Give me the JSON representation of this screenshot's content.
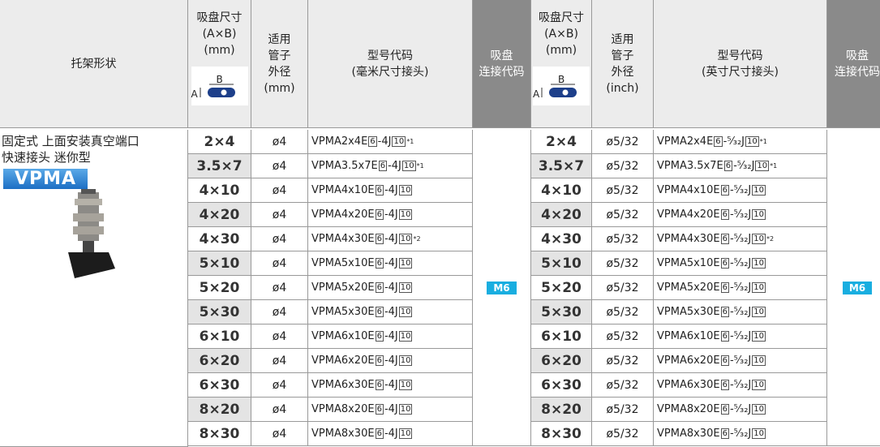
{
  "header": {
    "shape": "托架形状",
    "diagram": {
      "a": "A",
      "b": "B"
    },
    "left": {
      "size": [
        "吸盘尺寸",
        "(A×B)",
        "(mm)"
      ],
      "tube": [
        "适用",
        "管子",
        "外径",
        "(mm)"
      ],
      "model": [
        "型号代码",
        "(毫米尺寸接头)"
      ],
      "conn": [
        "吸盘",
        "连接代码"
      ]
    },
    "right": {
      "size": [
        "吸盘尺寸",
        "(A×B)",
        "(mm)"
      ],
      "tube": [
        "适用",
        "管子",
        "外径",
        "(inch)"
      ],
      "model": [
        "型号代码",
        "(英寸尺寸接头)"
      ],
      "conn": [
        "吸盘",
        "连接代码"
      ]
    }
  },
  "product": {
    "desc": [
      "固定式 上面安装真空端口",
      "快速接头 迷你型"
    ],
    "series": "VPMA"
  },
  "left": {
    "conn": "M6",
    "rows": [
      {
        "size": "2×4",
        "tube": "ø4",
        "model": "VPMA2x4E",
        "code": "6",
        "suffix": "-4J",
        "code2": "10",
        "note": "*1"
      },
      {
        "size": "3.5×7",
        "tube": "ø4",
        "model": "VPMA3.5x7E",
        "code": "6",
        "suffix": "-4J",
        "code2": "10",
        "note": "*1"
      },
      {
        "size": "4×10",
        "tube": "ø4",
        "model": "VPMA4x10E",
        "code": "6",
        "suffix": "-4J",
        "code2": "10"
      },
      {
        "size": "4×20",
        "tube": "ø4",
        "model": "VPMA4x20E",
        "code": "6",
        "suffix": "-4J",
        "code2": "10"
      },
      {
        "size": "4×30",
        "tube": "ø4",
        "model": "VPMA4x30E",
        "code": "6",
        "suffix": "-4J",
        "code2": "10",
        "note": "*2"
      },
      {
        "size": "5×10",
        "tube": "ø4",
        "model": "VPMA5x10E",
        "code": "6",
        "suffix": "-4J",
        "code2": "10"
      },
      {
        "size": "5×20",
        "tube": "ø4",
        "model": "VPMA5x20E",
        "code": "6",
        "suffix": "-4J",
        "code2": "10"
      },
      {
        "size": "5×30",
        "tube": "ø4",
        "model": "VPMA5x30E",
        "code": "6",
        "suffix": "-4J",
        "code2": "10"
      },
      {
        "size": "6×10",
        "tube": "ø4",
        "model": "VPMA6x10E",
        "code": "6",
        "suffix": "-4J",
        "code2": "10"
      },
      {
        "size": "6×20",
        "tube": "ø4",
        "model": "VPMA6x20E",
        "code": "6",
        "suffix": "-4J",
        "code2": "10"
      },
      {
        "size": "6×30",
        "tube": "ø4",
        "model": "VPMA6x30E",
        "code": "6",
        "suffix": "-4J",
        "code2": "10"
      },
      {
        "size": "8×20",
        "tube": "ø4",
        "model": "VPMA8x20E",
        "code": "6",
        "suffix": "-4J",
        "code2": "10"
      },
      {
        "size": "8×30",
        "tube": "ø4",
        "model": "VPMA8x30E",
        "code": "6",
        "suffix": "-4J",
        "code2": "10"
      }
    ]
  },
  "right": {
    "conn": "M6",
    "rows": [
      {
        "size": "2×4",
        "tube": "ø5/32",
        "model": "VPMA2x4E",
        "code": "6",
        "suffix": "-⁵⁄₃₂J",
        "code2": "10",
        "note": "*1"
      },
      {
        "size": "3.5×7",
        "tube": "ø5/32",
        "model": "VPMA3.5x7E",
        "code": "6",
        "suffix": "-⁵⁄₃₂J",
        "code2": "10",
        "note": "*1"
      },
      {
        "size": "4×10",
        "tube": "ø5/32",
        "model": "VPMA4x10E",
        "code": "6",
        "suffix": "-⁵⁄₃₂J",
        "code2": "10"
      },
      {
        "size": "4×20",
        "tube": "ø5/32",
        "model": "VPMA4x20E",
        "code": "6",
        "suffix": "-⁵⁄₃₂J",
        "code2": "10"
      },
      {
        "size": "4×30",
        "tube": "ø5/32",
        "model": "VPMA4x30E",
        "code": "6",
        "suffix": "-⁵⁄₃₂J",
        "code2": "10",
        "note": "*2"
      },
      {
        "size": "5×10",
        "tube": "ø5/32",
        "model": "VPMA5x10E",
        "code": "6",
        "suffix": "-⁵⁄₃₂J",
        "code2": "10"
      },
      {
        "size": "5×20",
        "tube": "ø5/32",
        "model": "VPMA5x20E",
        "code": "6",
        "suffix": "-⁵⁄₃₂J",
        "code2": "10"
      },
      {
        "size": "5×30",
        "tube": "ø5/32",
        "model": "VPMA5x30E",
        "code": "6",
        "suffix": "-⁵⁄₃₂J",
        "code2": "10"
      },
      {
        "size": "6×10",
        "tube": "ø5/32",
        "model": "VPMA6x10E",
        "code": "6",
        "suffix": "-⁵⁄₃₂J",
        "code2": "10"
      },
      {
        "size": "6×20",
        "tube": "ø5/32",
        "model": "VPMA6x20E",
        "code": "6",
        "suffix": "-⁵⁄₃₂J",
        "code2": "10"
      },
      {
        "size": "6×30",
        "tube": "ø5/32",
        "model": "VPMA6x30E",
        "code": "6",
        "suffix": "-⁵⁄₃₂J",
        "code2": "10"
      },
      {
        "size": "8×20",
        "tube": "ø5/32",
        "model": "VPMA8x20E",
        "code": "6",
        "suffix": "-⁵⁄₃₂J",
        "code2": "10"
      },
      {
        "size": "8×30",
        "tube": "ø5/32",
        "model": "VPMA8x30E",
        "code": "6",
        "suffix": "-⁵⁄₃₂J",
        "code2": "10"
      }
    ]
  }
}
